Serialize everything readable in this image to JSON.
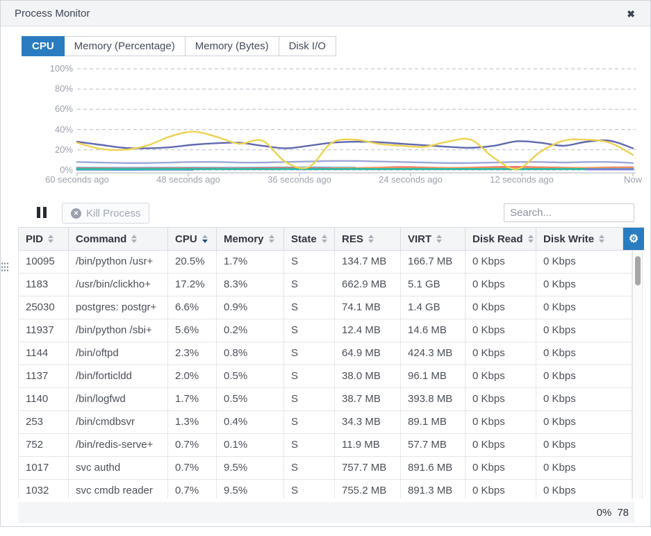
{
  "window": {
    "title": "Process Monitor",
    "close_icon": "✖"
  },
  "tabs": [
    {
      "label": "CPU",
      "active": true
    },
    {
      "label": "Memory (Percentage)",
      "active": false
    },
    {
      "label": "Memory (Bytes)",
      "active": false
    },
    {
      "label": "Disk I/O",
      "active": false
    }
  ],
  "chart_data": {
    "type": "line",
    "title": "",
    "xlabel": "",
    "ylabel": "",
    "ylim": [
      0,
      100
    ],
    "grid": "horizontal-dashed",
    "legend": "none",
    "y_tick_labels": [
      "0%",
      "20%",
      "40%",
      "60%",
      "80%",
      "100%"
    ],
    "x_tick_labels": [
      "60 seconds ago",
      "48 seconds ago",
      "36 seconds ago",
      "24 seconds ago",
      "12 seconds ago",
      "Now"
    ],
    "x_seconds_ago": [
      60,
      57.5,
      55,
      52.5,
      50,
      47.5,
      45,
      42.5,
      40,
      37.5,
      35,
      32.5,
      30,
      27.5,
      25,
      22.5,
      20,
      17.5,
      15,
      12.5,
      10,
      7.5,
      5,
      2.5,
      0
    ],
    "series": [
      {
        "name": "blue-start-segment",
        "color": "#4d7ad0",
        "thick": true,
        "values": [
          0.6,
          0.6,
          0.5,
          0.6,
          0.6,
          0.5,
          null,
          null,
          null,
          null,
          null,
          null,
          null,
          null,
          null,
          null,
          null,
          null,
          null,
          null,
          null,
          null,
          null,
          null,
          null
        ]
      },
      {
        "name": "sky-blue",
        "color": "#79c0ec",
        "thick": true,
        "values": [
          2.4,
          2.3,
          2.2,
          2.3,
          2.3,
          2.4,
          2.3,
          2.3,
          2.4,
          2.6,
          2.6,
          2.5,
          2.4,
          null,
          null,
          null,
          null,
          null,
          null,
          null,
          null,
          null,
          null,
          null,
          null
        ]
      },
      {
        "name": "salmon",
        "color": "#eb6f66",
        "thick": false,
        "values": [
          1.8,
          1.8,
          1.7,
          1.8,
          1.8,
          1.9,
          1.8,
          1.8,
          2,
          2.2,
          2,
          1.9,
          2,
          2.4,
          3,
          2.6,
          2.2,
          2.4,
          3,
          3.2,
          2.8,
          2.4,
          2.2,
          2.6,
          2.8
        ]
      },
      {
        "name": "orange",
        "color": "#f2a24a",
        "thick": true,
        "values": [
          null,
          null,
          null,
          null,
          null,
          null,
          null,
          null,
          null,
          null,
          null,
          1.6,
          1.7,
          1.8,
          1.7,
          1.6,
          1.7,
          1.8,
          1.7,
          1.6,
          1.6,
          1.7,
          1.8,
          1.7,
          1.7
        ]
      },
      {
        "name": "teal",
        "color": "#35b7a6",
        "thick": true,
        "values": [
          1.1,
          1,
          1,
          1.1,
          1,
          1,
          1.1,
          1,
          1,
          1.1,
          1,
          1,
          1.1,
          1,
          1,
          1.1,
          1,
          1,
          1.1,
          1,
          1,
          1.1,
          1,
          1,
          1
        ]
      },
      {
        "name": "violet-end-segment",
        "color": "#7d80d3",
        "thick": true,
        "values": [
          null,
          null,
          null,
          null,
          null,
          null,
          null,
          null,
          null,
          null,
          null,
          null,
          null,
          null,
          null,
          null,
          null,
          null,
          null,
          null,
          null,
          null,
          0.8,
          0.8,
          0.8
        ]
      },
      {
        "name": "light-periwinkle",
        "color": "#9ea6d8",
        "thick": false,
        "values": [
          8,
          7.5,
          7,
          7,
          7.5,
          8,
          8,
          7.5,
          7.5,
          8,
          8.5,
          9,
          9,
          8.5,
          8,
          7.5,
          7,
          7,
          7.5,
          8,
          8,
          7.5,
          8,
          8,
          7
        ]
      },
      {
        "name": "indigo",
        "color": "#5f68b0",
        "thick": false,
        "values": [
          28,
          25,
          22,
          21.5,
          22.5,
          25,
          26.5,
          27,
          24,
          21.5,
          24,
          27,
          28,
          27.5,
          26,
          24.5,
          23,
          22,
          24,
          28.5,
          27,
          24,
          28,
          29,
          21.5
        ]
      },
      {
        "name": "yellow",
        "color": "#eed24f",
        "thick": false,
        "values": [
          27,
          21,
          20,
          24,
          33,
          38,
          33,
          26,
          29,
          8,
          3,
          27,
          30,
          26,
          24,
          23,
          28,
          30,
          12,
          1,
          18,
          29,
          30,
          27,
          15
        ]
      }
    ]
  },
  "toolbar": {
    "kill_button_label": "Kill Process",
    "kill_icon": "✕",
    "kill_disabled": true,
    "search_placeholder": "Search..."
  },
  "table": {
    "settings_icon": "⚙",
    "columns": [
      {
        "label": "PID",
        "sort": "none"
      },
      {
        "label": "Command",
        "sort": "none"
      },
      {
        "label": "CPU",
        "sort": "desc"
      },
      {
        "label": "Memory",
        "sort": "none"
      },
      {
        "label": "State",
        "sort": "none"
      },
      {
        "label": "RES",
        "sort": "none"
      },
      {
        "label": "VIRT",
        "sort": "none"
      },
      {
        "label": "Disk Read",
        "sort": "none"
      },
      {
        "label": "Disk Write",
        "sort": "none"
      }
    ],
    "rows": [
      [
        "10095",
        "/bin/python /usr+",
        "20.5%",
        "1.7%",
        "S",
        "134.7 MB",
        "166.7 MB",
        "0 Kbps",
        "0 Kbps"
      ],
      [
        "1183",
        "/usr/bin/clickho+",
        "17.2%",
        "8.3%",
        "S",
        "662.9 MB",
        "5.1 GB",
        "0 Kbps",
        "0 Kbps"
      ],
      [
        "25030",
        "postgres: postgr+",
        "6.6%",
        "0.9%",
        "S",
        "74.1 MB",
        "1.4 GB",
        "0 Kbps",
        "0 Kbps"
      ],
      [
        "11937",
        "/bin/python /sbi+",
        "5.6%",
        "0.2%",
        "S",
        "12.4 MB",
        "14.6 MB",
        "0 Kbps",
        "0 Kbps"
      ],
      [
        "1144",
        "/bin/oftpd",
        "2.3%",
        "0.8%",
        "S",
        "64.9 MB",
        "424.3 MB",
        "0 Kbps",
        "0 Kbps"
      ],
      [
        "1137",
        "/bin/forticldd",
        "2.0%",
        "0.5%",
        "S",
        "38.0 MB",
        "96.1 MB",
        "0 Kbps",
        "0 Kbps"
      ],
      [
        "1140",
        "/bin/logfwd",
        "1.7%",
        "0.5%",
        "S",
        "38.7 MB",
        "393.8 MB",
        "0 Kbps",
        "0 Kbps"
      ],
      [
        "253",
        "/bin/cmdbsvr",
        "1.3%",
        "0.4%",
        "S",
        "34.3 MB",
        "89.1 MB",
        "0 Kbps",
        "0 Kbps"
      ],
      [
        "752",
        "/bin/redis-serve+",
        "0.7%",
        "0.1%",
        "S",
        "11.9 MB",
        "57.7 MB",
        "0 Kbps",
        "0 Kbps"
      ],
      [
        "1017",
        "svc authd",
        "0.7%",
        "9.5%",
        "S",
        "757.7 MB",
        "891.6 MB",
        "0 Kbps",
        "0 Kbps"
      ],
      [
        "1032",
        "svc cmdb reader",
        "0.7%",
        "9.5%",
        "S",
        "755.2 MB",
        "891.3 MB",
        "0 Kbps",
        "0 Kbps"
      ],
      [
        "",
        "",
        "",
        "",
        "",
        "",
        "",
        "",
        ""
      ]
    ]
  },
  "footer": {
    "scroll_percent": "0%",
    "row_count": "78"
  }
}
